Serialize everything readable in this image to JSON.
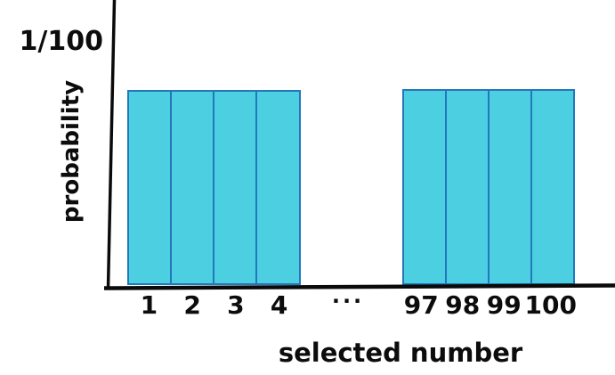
{
  "chart_data": {
    "type": "bar",
    "title": "",
    "xlabel": "selected number",
    "ylabel": "probability",
    "y_axis": {
      "tick_labels": [
        "1/100"
      ],
      "ylim": [
        0,
        0.0118
      ],
      "grid": false
    },
    "categories": [
      "1",
      "2",
      "3",
      "4",
      "...",
      "97",
      "98",
      "99",
      "100"
    ],
    "values": [
      0.01,
      0.01,
      0.01,
      0.01,
      null,
      0.01,
      0.01,
      0.01,
      0.01
    ],
    "groups": [
      {
        "categories": [
          "1",
          "2",
          "3",
          "4"
        ],
        "values": [
          0.01,
          0.01,
          0.01,
          0.01
        ]
      },
      {
        "categories": [
          "97",
          "98",
          "99",
          "100"
        ],
        "values": [
          0.01,
          0.01,
          0.01,
          0.01
        ]
      }
    ],
    "gap_label": "...",
    "legend": null,
    "colors": {
      "bar_fill": "#4dcfe2",
      "bar_border": "#2377bd",
      "axis": "#0a0a0a",
      "text": "#0c0c0c",
      "background": "#ffffff"
    }
  }
}
